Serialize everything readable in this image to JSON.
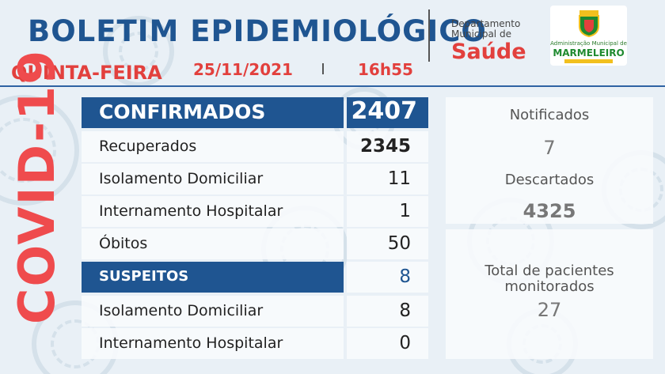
{
  "header": {
    "title": "BOLETIM EPIDEMIOLÓGICO",
    "day": "QUINTA-FEIRA",
    "date": "25/11/2021",
    "time": "16h55",
    "department_line1": "Departamento",
    "department_line2": "Municipal de",
    "department_name": "Saúde",
    "logo_line1": "Administração Municipal de",
    "logo_line2": "MARMELEIRO"
  },
  "side_label": "COVID-19",
  "table": {
    "confirmed": {
      "label": "CONFIRMADOS",
      "value": "2407"
    },
    "confirmed_rows": [
      {
        "label": "Recuperados",
        "value": "2345"
      },
      {
        "label": "Isolamento Domiciliar",
        "value": "11"
      },
      {
        "label": "Internamento Hospitalar",
        "value": "1"
      },
      {
        "label": "Óbitos",
        "value": "50"
      }
    ],
    "suspected": {
      "label": "SUSPEITOS",
      "value": "8"
    },
    "suspected_rows": [
      {
        "label": "Isolamento Domiciliar",
        "value": "8"
      },
      {
        "label": "Internamento Hospitalar",
        "value": "0"
      }
    ]
  },
  "side_panel": {
    "notified": {
      "label": "Notificados",
      "value": "7"
    },
    "discarded": {
      "label": "Descartados",
      "value": "4325"
    },
    "monitored": {
      "label_line1": "Total de pacientes",
      "label_line2": "monitorados",
      "value": "27"
    }
  },
  "colors": {
    "primary_blue": "#1f5591",
    "accent_red": "#e2403d",
    "covid_red": "#ef4b4d"
  }
}
